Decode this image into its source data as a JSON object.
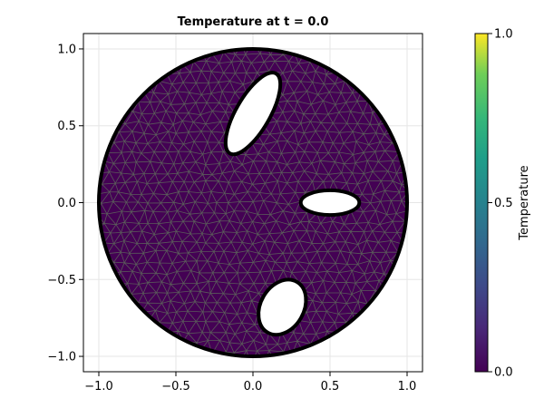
{
  "chart_data": {
    "type": "heatmap",
    "title": "Temperature at t = 0.0",
    "xlabel": "",
    "ylabel": "",
    "xlim": [
      -1.1,
      1.1
    ],
    "ylim": [
      -1.1,
      1.1
    ],
    "xticks": [
      -1.0,
      -0.5,
      0.0,
      0.5,
      1.0
    ],
    "xtick_labels": [
      "−1.0",
      "−0.5",
      "0.0",
      "0.5",
      "1.0"
    ],
    "yticks": [
      -1.0,
      -0.5,
      0.0,
      0.5,
      1.0
    ],
    "ytick_labels": [
      "−1.0",
      "−0.5",
      "0.0",
      "0.5",
      "1.0"
    ],
    "grid": true,
    "domain": {
      "shape": "disk",
      "center": [
        0.0,
        0.0
      ],
      "radius": 1.0
    },
    "holes": [
      {
        "shape": "ellipse",
        "center": [
          0.0,
          0.58
        ],
        "rx": 0.11,
        "ry": 0.3,
        "rotation_deg": 30
      },
      {
        "shape": "ellipse",
        "center": [
          0.5,
          0.0
        ],
        "rx": 0.19,
        "ry": 0.08,
        "rotation_deg": 0
      },
      {
        "shape": "ellipse",
        "center": [
          0.19,
          -0.68
        ],
        "rx": 0.14,
        "ry": 0.19,
        "rotation_deg": 30
      }
    ],
    "field_value": 0.0,
    "colorbar": {
      "label": "Temperature",
      "range": [
        0.0,
        1.0
      ],
      "ticks": [
        0.0,
        0.5,
        1.0
      ],
      "tick_labels": [
        "0.0",
        "0.5",
        "1.0"
      ],
      "colormap": "viridis"
    }
  },
  "colors": {
    "field": "#440154",
    "mesh_edges": "#5a5a5a",
    "boundary": "#000000",
    "grid": "#e6e6e6"
  }
}
